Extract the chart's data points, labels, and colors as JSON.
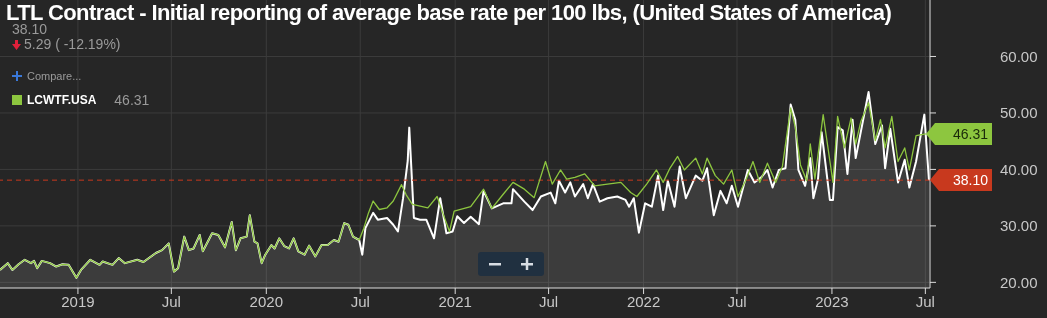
{
  "chart_data": {
    "type": "line",
    "title": "LTL Contract - Initial reporting of average base rate per 100 lbs, (United States of America)",
    "annotations": [
      "38.10",
      "5.29 ( -12.19%)",
      "Compare...",
      "46.31",
      {
        "text": "46.31",
        "x": "2023-07-02",
        "y": 46.31
      }
    ],
    "xlim": [
      "2018-08-03",
      "2023-07-10"
    ],
    "xticks": [
      {
        "value": "2019",
        "label": "2019"
      },
      {
        "value": "2019-07",
        "label": "Jul"
      },
      {
        "value": "2020",
        "label": "2020"
      },
      {
        "value": "2020-07",
        "label": "Jul"
      },
      {
        "value": "2021",
        "label": "2021"
      },
      {
        "value": "2021-07",
        "label": "Jul"
      },
      {
        "value": "2022",
        "label": "2022"
      },
      {
        "value": "2022-07",
        "label": "Jul"
      },
      {
        "value": "2023",
        "label": "2023"
      },
      {
        "value": "2023-07",
        "label": "Jul"
      }
    ],
    "ylim": [
      19,
      70
    ],
    "yticks": [
      {
        "value": 20,
        "label": "20.00"
      },
      {
        "value": 30,
        "label": "30.00"
      },
      {
        "value": 40,
        "label": "40.00"
      },
      {
        "value": 50,
        "label": "50.00"
      },
      {
        "value": 60,
        "label": "60.00"
      }
    ],
    "grid": true,
    "legend": "top left",
    "ref_lines": [
      {
        "axis": "y",
        "value": 38.1,
        "label": "38.10",
        "color": "#c8391e",
        "line_style": "dashed"
      }
    ],
    "series": [
      {
        "name": "LCWTF.USA",
        "color": "#8dc63f",
        "x": [
          "2018-08-03",
          "2018-08-18",
          "2018-08-27",
          "2018-09-08",
          "2018-09-20",
          "2018-10-02",
          "2018-10-08",
          "2018-10-14",
          "2018-10-23",
          "2018-11-08",
          "2018-11-20",
          "2018-12-02",
          "2018-12-14",
          "2018-12-29",
          "2019-01-07",
          "2019-01-25",
          "2019-02-12",
          "2019-02-18",
          "2019-03-09",
          "2019-03-21",
          "2019-04-02",
          "2019-04-26",
          "2019-05-08",
          "2019-06-01",
          "2019-06-13",
          "2019-06-26",
          "2019-07-06",
          "2019-07-14",
          "2019-07-26",
          "2019-08-04",
          "2019-08-13",
          "2019-08-25",
          "2019-08-31",
          "2019-09-18",
          "2019-09-30",
          "2019-10-13",
          "2019-10-26",
          "2019-11-03",
          "2019-11-12",
          "2019-11-24",
          "2019-11-30",
          "2019-12-09",
          "2019-12-15",
          "2019-12-23",
          "2019-12-30",
          "2020-01-11",
          "2020-01-17",
          "2020-01-26",
          "2020-02-05",
          "2020-02-14",
          "2020-02-23",
          "2020-03-03",
          "2020-03-15",
          "2020-03-24",
          "2020-04-05",
          "2020-04-17",
          "2020-04-29",
          "2020-05-11",
          "2020-05-20",
          "2020-05-31",
          "2020-06-08",
          "2020-06-17",
          "2020-06-29",
          "2020-07-08",
          "2020-07-17",
          "2020-07-26",
          "2020-08-07",
          "2020-08-22",
          "2020-09-03",
          "2020-09-19",
          "2020-09-28",
          "2020-10-10",
          "2020-10-25",
          "2020-11-09",
          "2020-11-27",
          "2020-12-09",
          "2020-12-21",
          "2020-12-30",
          "2021-01-31",
          "2021-02-25",
          "2021-03-13",
          "2021-04-04",
          "2021-04-23",
          "2021-05-15",
          "2021-06-03",
          "2021-06-25",
          "2021-07-08",
          "2021-07-24",
          "2021-08-05",
          "2021-08-21",
          "2021-09-09",
          "2021-09-28",
          "2021-10-23",
          "2021-11-18",
          "2021-12-07",
          "2021-12-19",
          "2022-01-07",
          "2022-01-26",
          "2022-02-08",
          "2022-02-21",
          "2022-03-08",
          "2022-03-21",
          "2022-04-12",
          "2022-04-25",
          "2022-05-04",
          "2022-05-20",
          "2022-06-05",
          "2022-06-21",
          "2022-07-03",
          "2022-07-19",
          "2022-08-01",
          "2022-08-14",
          "2022-08-29",
          "2022-09-14",
          "2022-09-27",
          "2022-10-13",
          "2022-10-22",
          "2022-11-01",
          "2022-11-13",
          "2022-11-20",
          "2022-11-29",
          "2022-12-15",
          "2023-01-03",
          "2023-01-12",
          "2023-01-25",
          "2023-02-07",
          "2023-02-16",
          "2023-02-26",
          "2023-03-13",
          "2023-03-26",
          "2023-04-05",
          "2023-04-14",
          "2023-04-27",
          "2023-05-09",
          "2023-05-22",
          "2023-05-31",
          "2023-06-13",
          "2023-07-02"
        ],
        "values": [
          22.2,
          23.4,
          22.2,
          23.2,
          24.0,
          23.4,
          23.8,
          22.5,
          23.8,
          23.4,
          22.8,
          23.2,
          23.1,
          20.8,
          22.2,
          24.0,
          23.1,
          23.7,
          23.1,
          24.3,
          23.4,
          24.0,
          23.6,
          25.2,
          25.7,
          26.9,
          21.9,
          22.5,
          28.1,
          25.7,
          26.0,
          28.4,
          25.5,
          28.7,
          28.4,
          26.2,
          30.7,
          25.7,
          27.8,
          28.1,
          31.9,
          27.2,
          26.9,
          23.4,
          24.9,
          26.6,
          26.0,
          27.8,
          26.4,
          26.0,
          27.8,
          25.5,
          24.9,
          26.5,
          24.6,
          26.6,
          26.6,
          27.5,
          27.2,
          30.5,
          30.2,
          28.1,
          27.5,
          29.6,
          32.3,
          34.4,
          32.9,
          33.2,
          34.4,
          37.3,
          35.5,
          33.8,
          33.5,
          33.2,
          35.2,
          32.0,
          29.0,
          32.6,
          33.4,
          36.5,
          33.1,
          35.6,
          37.7,
          36.5,
          35.0,
          41.4,
          37.4,
          39.9,
          38.3,
          38.6,
          39.2,
          37.1,
          37.4,
          37.7,
          35.9,
          35.2,
          37.4,
          39.9,
          37.7,
          40.2,
          42.3,
          39.9,
          42.0,
          39.2,
          42.0,
          38.9,
          37.4,
          39.9,
          35.2,
          38.3,
          41.4,
          37.7,
          41.1,
          37.7,
          40.5,
          50.9,
          47.5,
          40.8,
          38.0,
          44.5,
          38.3,
          49.7,
          37.7,
          49.4,
          43.8,
          49.1,
          44.5,
          48.5,
          51.8,
          45.1,
          48.8,
          43.8,
          49.4,
          41.4,
          43.8,
          39.9,
          46.0,
          46.3
        ]
      },
      {
        "color": "#ffffff",
        "type": "area",
        "x": [
          "2018-08-03",
          "2018-08-18",
          "2018-08-27",
          "2018-09-08",
          "2018-09-20",
          "2018-10-02",
          "2018-10-08",
          "2018-10-14",
          "2018-10-23",
          "2018-11-08",
          "2018-11-20",
          "2018-12-02",
          "2018-12-14",
          "2018-12-29",
          "2019-01-07",
          "2019-01-25",
          "2019-02-12",
          "2019-02-18",
          "2019-03-09",
          "2019-03-21",
          "2019-04-02",
          "2019-04-26",
          "2019-05-08",
          "2019-06-01",
          "2019-06-13",
          "2019-06-26",
          "2019-07-06",
          "2019-07-14",
          "2019-07-26",
          "2019-08-04",
          "2019-08-13",
          "2019-08-25",
          "2019-08-31",
          "2019-09-18",
          "2019-09-30",
          "2019-10-13",
          "2019-10-26",
          "2019-11-03",
          "2019-11-12",
          "2019-11-24",
          "2019-11-30",
          "2019-12-09",
          "2019-12-15",
          "2019-12-23",
          "2019-12-30",
          "2020-01-11",
          "2020-01-17",
          "2020-01-26",
          "2020-02-05",
          "2020-02-14",
          "2020-02-23",
          "2020-03-03",
          "2020-03-15",
          "2020-03-24",
          "2020-04-05",
          "2020-04-17",
          "2020-04-29",
          "2020-05-11",
          "2020-05-20",
          "2020-05-31",
          "2020-06-08",
          "2020-06-17",
          "2020-06-29",
          "2020-07-05",
          "2020-07-11",
          "2020-07-26",
          "2020-08-04",
          "2020-08-22",
          "2020-09-03",
          "2020-09-12",
          "2020-09-22",
          "2020-10-01",
          "2020-10-04",
          "2020-10-13",
          "2020-10-25",
          "2020-11-06",
          "2020-11-21",
          "2020-12-03",
          "2020-12-15",
          "2020-12-27",
          "2021-01-05",
          "2021-01-18",
          "2021-01-31",
          "2021-02-16",
          "2021-02-25",
          "2021-03-13",
          "2021-04-04",
          "2021-04-20",
          "2021-04-23",
          "2021-05-15",
          "2021-05-31",
          "2021-06-16",
          "2021-07-05",
          "2021-07-14",
          "2021-07-21",
          "2021-08-02",
          "2021-08-12",
          "2021-08-21",
          "2021-09-06",
          "2021-09-15",
          "2021-09-25",
          "2021-10-08",
          "2021-10-23",
          "2021-11-11",
          "2021-11-27",
          "2021-12-04",
          "2021-12-13",
          "2021-12-23",
          "2022-01-04",
          "2022-01-17",
          "2022-01-29",
          "2022-02-08",
          "2022-02-17",
          "2022-03-02",
          "2022-03-12",
          "2022-03-24",
          "2022-04-12",
          "2022-04-25",
          "2022-05-04",
          "2022-05-17",
          "2022-05-30",
          "2022-06-11",
          "2022-06-21",
          "2022-07-03",
          "2022-07-22",
          "2022-08-04",
          "2022-08-17",
          "2022-08-29",
          "2022-09-08",
          "2022-09-20",
          "2022-10-03",
          "2022-10-13",
          "2022-10-22",
          "2022-10-28",
          "2022-11-10",
          "2022-11-20",
          "2022-11-26",
          "2022-12-05",
          "2022-12-12",
          "2022-12-28",
          "2023-01-03",
          "2023-01-12",
          "2023-01-22",
          "2023-01-31",
          "2023-02-10",
          "2023-02-16",
          "2023-03-13",
          "2023-03-26",
          "2023-04-08",
          "2023-04-14",
          "2023-04-24",
          "2023-05-09",
          "2023-05-22",
          "2023-05-31",
          "2023-06-13",
          "2023-06-29",
          "2023-07-08"
        ],
        "values": [
          22.2,
          23.4,
          22.2,
          23.2,
          24.0,
          23.4,
          23.8,
          22.5,
          23.8,
          23.4,
          22.8,
          23.2,
          23.1,
          20.8,
          22.2,
          24.0,
          23.1,
          23.7,
          23.1,
          24.3,
          23.4,
          24.0,
          23.6,
          25.2,
          25.7,
          26.9,
          21.9,
          22.5,
          28.1,
          25.7,
          26.0,
          28.4,
          25.5,
          28.7,
          28.4,
          26.2,
          30.7,
          25.7,
          27.8,
          28.1,
          31.9,
          27.2,
          26.9,
          23.4,
          24.9,
          26.6,
          26.0,
          27.8,
          26.4,
          26.0,
          27.8,
          25.5,
          24.9,
          26.5,
          24.6,
          26.6,
          26.6,
          27.5,
          27.2,
          30.5,
          30.2,
          28.1,
          27.5,
          24.9,
          29.6,
          32.3,
          31.1,
          31.4,
          30.2,
          29.0,
          34.9,
          41.5,
          47.4,
          31.4,
          31.1,
          31.1,
          27.8,
          34.9,
          28.7,
          29.0,
          31.7,
          30.5,
          31.6,
          30.3,
          36.2,
          33.1,
          34.0,
          34.0,
          36.5,
          34.3,
          32.8,
          35.2,
          35.9,
          34.0,
          38.0,
          35.9,
          37.7,
          35.2,
          37.4,
          34.9,
          37.4,
          34.3,
          34.9,
          35.2,
          34.6,
          33.4,
          34.9,
          28.8,
          34.0,
          33.4,
          38.9,
          32.8,
          38.0,
          33.4,
          40.5,
          34.9,
          38.9,
          38.0,
          40.2,
          31.9,
          36.2,
          34.0,
          37.1,
          33.4,
          39.9,
          37.7,
          38.6,
          39.9,
          36.8,
          39.9,
          40.2,
          51.5,
          48.8,
          39.9,
          37.1,
          42.0,
          34.9,
          38.3,
          46.6,
          34.6,
          34.6,
          47.5,
          46.9,
          39.2,
          48.8,
          42.0,
          53.7,
          44.5,
          47.8,
          40.2,
          47.2,
          37.7,
          41.7,
          36.8,
          41.4,
          49.7,
          38.1
        ]
      }
    ]
  }
}
